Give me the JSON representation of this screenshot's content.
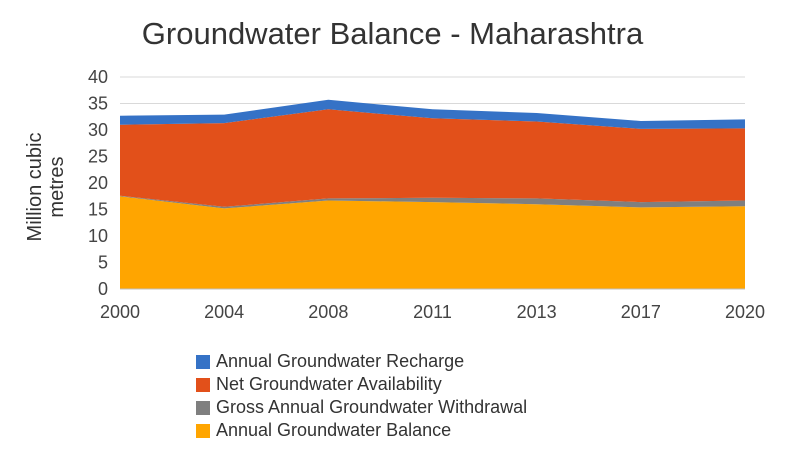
{
  "chart_data": {
    "type": "area",
    "stacked": true,
    "title": "Groundwater Balance - Maharashtra",
    "ylabel": [
      "Million cubic",
      "metres"
    ],
    "xlabel": "",
    "categories": [
      "2000",
      "2004",
      "2008",
      "2011",
      "2013",
      "2017",
      "2020"
    ],
    "ylim": [
      0,
      40
    ],
    "yticks": [
      0,
      5,
      10,
      15,
      20,
      25,
      30,
      35,
      40
    ],
    "grid": true,
    "legend_position": "bottom",
    "series": [
      {
        "name": "Annual Groundwater Balance",
        "color": "#FFA500",
        "values": [
          17.5,
          15.2,
          16.7,
          16.4,
          16.0,
          15.4,
          15.6
        ]
      },
      {
        "name": "Gross Annual Groundwater Withdrawal",
        "color": "#7F7F7F",
        "values": [
          0.1,
          0.3,
          0.4,
          0.8,
          1.1,
          1.0,
          1.1
        ]
      },
      {
        "name": "Net Groundwater Availability",
        "color": "#E2501A",
        "values": [
          13.4,
          15.8,
          16.8,
          15.0,
          14.5,
          13.8,
          13.6
        ]
      },
      {
        "name": "Annual Groundwater Recharge",
        "color": "#3572C6",
        "values": [
          1.7,
          1.6,
          1.8,
          1.7,
          1.6,
          1.5,
          1.7
        ]
      }
    ],
    "legend_order": [
      "Annual Groundwater Recharge",
      "Net Groundwater Availability",
      "Gross Annual Groundwater Withdrawal",
      "Annual Groundwater Balance"
    ]
  }
}
